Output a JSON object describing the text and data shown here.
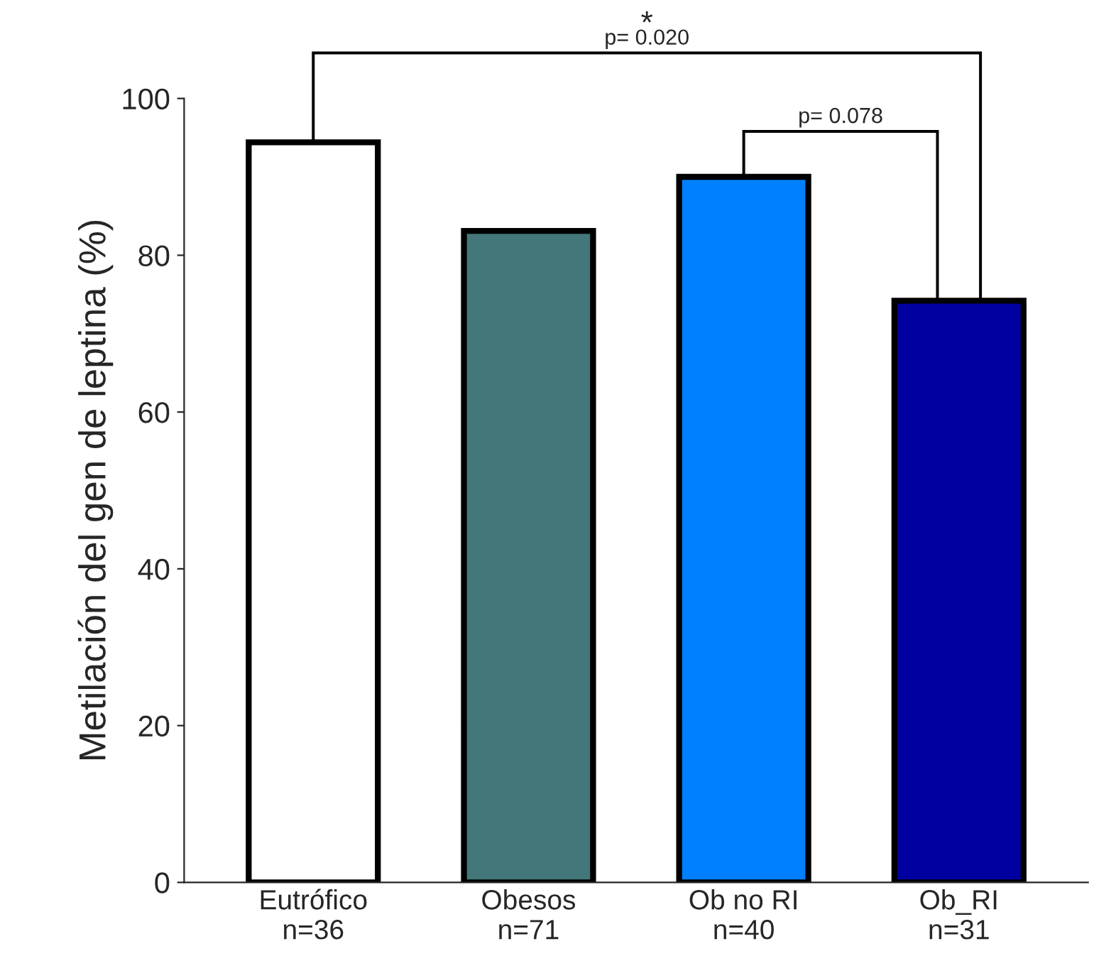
{
  "chart_data": {
    "type": "bar",
    "categories": [
      "Eutrófico\nn=36",
      "Obesos\nn=71",
      "Ob no RI\nn=40",
      "Ob_RI\nn=31"
    ],
    "values": [
      94.4,
      83.1,
      90.0,
      74.2
    ],
    "colors": [
      "#ffffff",
      "#44777a",
      "#0080ff",
      "#0000a0"
    ],
    "ylabel": "Metilación del gen de leptina (%)",
    "ylim": [
      0,
      100
    ],
    "yticks": [
      0,
      20,
      40,
      60,
      80,
      100
    ],
    "annotations": [
      "p= 0.020",
      "*",
      "p= 0.078"
    ],
    "grid": false,
    "legend": false
  }
}
